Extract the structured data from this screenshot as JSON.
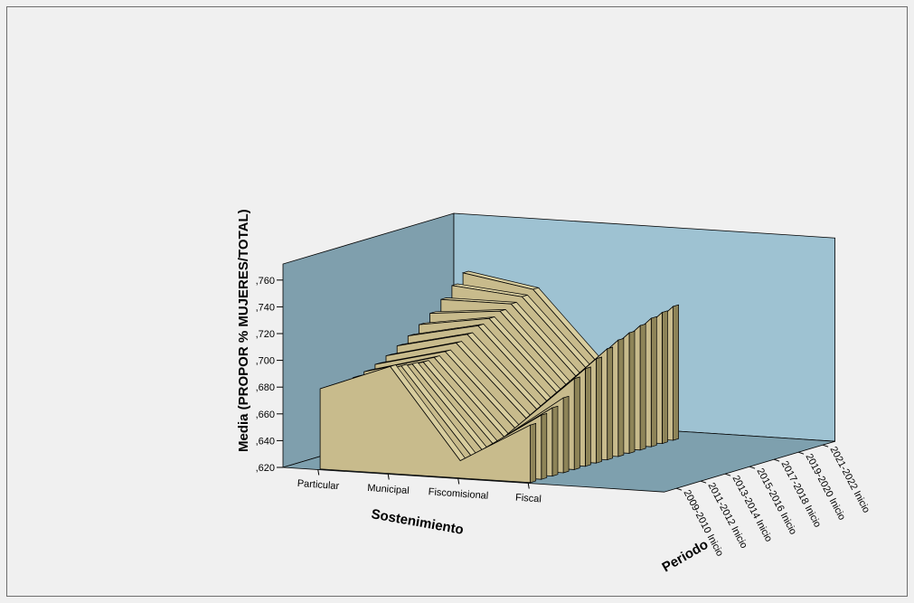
{
  "chart_data": {
    "type": "area",
    "title": "",
    "xlabel": "Sostenimiento",
    "ylabel": "Media (PROPOR % MUJERES/TOTAL)",
    "zlabel": "Periodo",
    "ylim": [
      0.62,
      0.76
    ],
    "y_ticks": [
      ",620",
      ",640",
      ",660",
      ",680",
      ",700",
      ",720",
      ",740",
      ",760"
    ],
    "categories": [
      "Particular",
      "Municipal",
      "Fiscomisional",
      "Fiscal"
    ],
    "depth_tick_labels": [
      "2009-2010 Inicio",
      "2011-2012 Inicio",
      "2013-2014 Inicio",
      "2015-2016 Inicio",
      "2017-2018 Inicio",
      "2019-2020 Inicio",
      "2021-2022 Inicio"
    ],
    "series": [
      {
        "values": [
          0.68,
          0.7,
          0.633,
          0.663
        ]
      },
      {
        "values": [
          0.68,
          0.698,
          0.634,
          0.668
        ]
      },
      {
        "values": [
          0.68,
          0.697,
          0.636,
          0.671
        ]
      },
      {
        "values": [
          0.681,
          0.696,
          0.638,
          0.676
        ]
      },
      {
        "values": [
          0.683,
          0.697,
          0.641,
          0.688
        ]
      },
      {
        "values": [
          0.686,
          0.699,
          0.645,
          0.693
        ]
      },
      {
        "values": [
          0.69,
          0.703,
          0.65,
          0.698
        ]
      },
      {
        "values": [
          0.695,
          0.707,
          0.654,
          0.703
        ]
      },
      {
        "values": [
          0.7,
          0.711,
          0.657,
          0.707
        ]
      },
      {
        "values": [
          0.706,
          0.714,
          0.66,
          0.71
        ]
      },
      {
        "values": [
          0.712,
          0.717,
          0.662,
          0.713
        ]
      },
      {
        "values": [
          0.72,
          0.72,
          0.665,
          0.716
        ]
      },
      {
        "values": [
          0.728,
          0.723,
          0.668,
          0.718
        ]
      },
      {
        "values": [
          0.735,
          0.726,
          0.67,
          0.72
        ]
      }
    ],
    "colors": {
      "back_wall": "#9ec2d2",
      "left_wall": "#7f9fad",
      "floor": "#7ea0ae",
      "ribbon_face": "#c8bb8c",
      "ribbon_top": "#d8cd9e",
      "ribbon_side": "#8e8458",
      "edge": "#000000"
    },
    "grid": false,
    "legend": "none"
  }
}
